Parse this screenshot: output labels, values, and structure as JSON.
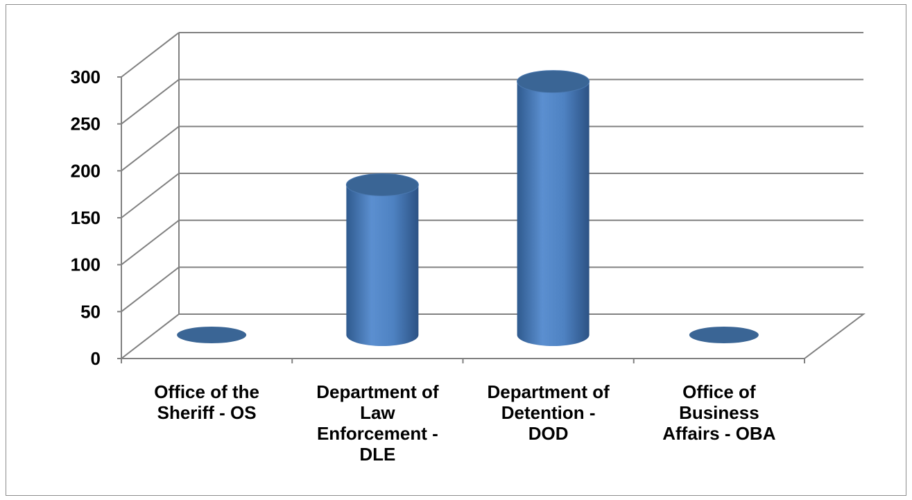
{
  "chart_data": {
    "type": "bar",
    "style": "3d-cylinder",
    "title": "",
    "xlabel": "",
    "ylabel": "",
    "categories": [
      [
        "Office of the",
        "Sheriff - OS"
      ],
      [
        "Department of",
        "Law",
        "Enforcement -",
        "DLE"
      ],
      [
        "Department of",
        "Detention -",
        "DOD"
      ],
      [
        "Office of",
        "Business",
        "Affairs - OBA"
      ]
    ],
    "values": [
      0,
      160,
      270,
      0
    ],
    "ylim": [
      0,
      300
    ],
    "yticks": [
      "0",
      "50",
      "100",
      "150",
      "200",
      "250",
      "300"
    ],
    "grid": true,
    "legend": "none",
    "colors": {
      "bar_body": "#4f81bd",
      "bar_top": "#3a6595",
      "bar_shadow": "#2e5280",
      "grid": "#808080"
    }
  }
}
